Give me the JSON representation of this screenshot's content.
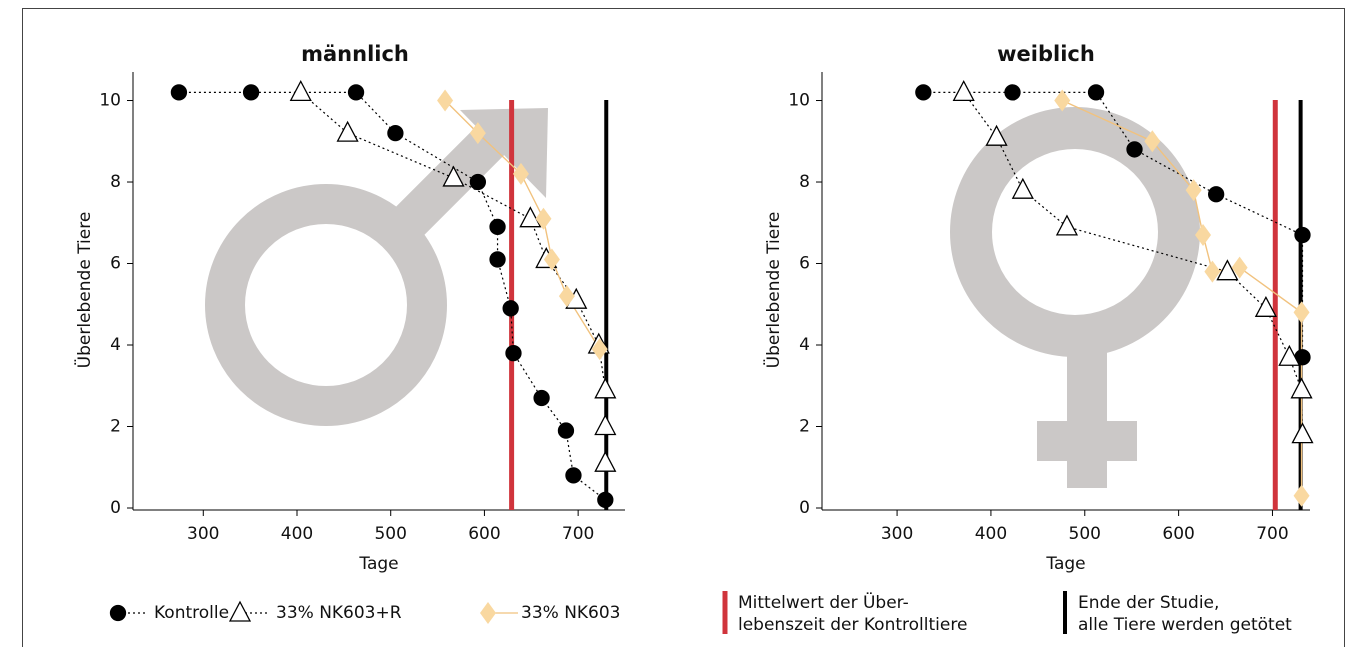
{
  "chart_data": [
    {
      "type": "line",
      "title": "männlich",
      "xlabel": "Tage",
      "ylabel": "Überlebende Tiere",
      "xlim": [
        225,
        750
      ],
      "ylim": [
        0,
        10.7
      ],
      "xticks": [
        300,
        400,
        500,
        600,
        700
      ],
      "yticks": [
        0,
        2,
        4,
        6,
        8,
        10
      ],
      "series": [
        {
          "name": "Kontrolle",
          "marker": "circle",
          "color": "#000000",
          "line_color": "#000000",
          "line_style": "dotted",
          "x": [
            274,
            351,
            463,
            505,
            593,
            614,
            614,
            628,
            631,
            661,
            687,
            695,
            729
          ],
          "values": [
            10.2,
            10.2,
            10.2,
            9.2,
            8.0,
            6.9,
            6.1,
            4.9,
            3.8,
            2.7,
            1.9,
            0.8,
            0.2
          ]
        },
        {
          "name": "33% NK603+R",
          "marker": "triangle",
          "color": "#ffffff",
          "line_color": "#000000",
          "line_style": "dotted",
          "x": [
            404,
            454,
            567,
            649,
            666,
            698,
            722,
            729,
            729,
            729
          ],
          "values": [
            10.2,
            9.2,
            8.1,
            7.1,
            6.1,
            5.1,
            4.0,
            2.9,
            2.0,
            1.1
          ]
        },
        {
          "name": "33% NK603",
          "marker": "diamond",
          "color": "#f9d8a0",
          "line_color": "#f1c27e",
          "line_style": "solid",
          "x": [
            558,
            593,
            639,
            663,
            672,
            688,
            723
          ],
          "values": [
            10.0,
            9.2,
            8.2,
            7.1,
            6.1,
            5.2,
            3.9
          ]
        }
      ],
      "vlines": [
        {
          "value": 629,
          "color": "#d0343c",
          "label": [
            "Mittelwert der Über-",
            "lebenszeit der Kontrolltiere"
          ]
        },
        {
          "value": 730,
          "color": "#000000",
          "label": [
            "Ende der Studie,",
            "alle Tiere werden getötet"
          ]
        }
      ]
    },
    {
      "type": "line",
      "title": "weiblich",
      "xlabel": "Tage",
      "ylabel": "Überlebende Tiere",
      "xlim": [
        220,
        740
      ],
      "ylim": [
        0,
        10.7
      ],
      "xticks": [
        300,
        400,
        500,
        600,
        700
      ],
      "yticks": [
        0,
        2,
        4,
        6,
        8,
        10
      ],
      "series": [
        {
          "marker": "circle",
          "color": "#000000",
          "line_color": "#000000",
          "line_style": "dotted",
          "x": [
            328,
            423,
            512,
            553,
            640,
            732,
            732
          ],
          "values": [
            10.2,
            10.2,
            10.2,
            8.8,
            7.7,
            6.7,
            3.7
          ]
        },
        {
          "marker": "triangle",
          "color": "#ffffff",
          "line_color": "#000000",
          "line_style": "dotted",
          "x": [
            371,
            406,
            434,
            481,
            652,
            693,
            718,
            731,
            732
          ],
          "values": [
            10.2,
            9.1,
            7.8,
            6.9,
            5.8,
            4.9,
            3.7,
            2.9,
            1.8
          ]
        },
        {
          "marker": "diamond",
          "color": "#f9d8a0",
          "line_color": "#f1c27e",
          "line_style": "solid",
          "x": [
            476,
            572,
            616,
            626,
            636,
            665,
            731,
            731
          ],
          "values": [
            10.0,
            9.0,
            7.8,
            6.7,
            5.8,
            5.9,
            4.8,
            0.3
          ]
        }
      ],
      "vlines": [
        {
          "value": 703,
          "color": "#d0343c"
        },
        {
          "value": 730,
          "color": "#000000"
        }
      ]
    }
  ]
}
